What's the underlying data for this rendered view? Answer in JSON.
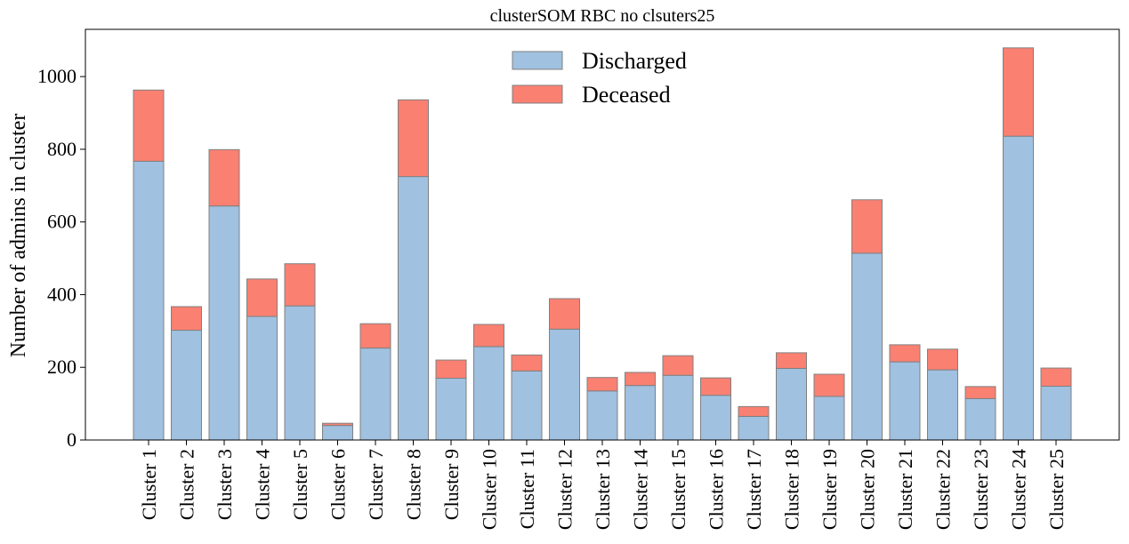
{
  "chart_data": {
    "type": "bar",
    "stacked": true,
    "title": "clusterSOM RBC no clsuters25",
    "xlabel": "",
    "ylabel": "Number of admins in cluster",
    "ylim": [
      0,
      1130
    ],
    "yticks": [
      0,
      200,
      400,
      600,
      800,
      1000
    ],
    "grid": false,
    "legend_position": "top-center",
    "categories": [
      "Cluster 1",
      "Cluster 2",
      "Cluster 3",
      "Cluster 4",
      "Cluster 5",
      "Cluster 6",
      "Cluster 7",
      "Cluster 8",
      "Cluster 9",
      "Cluster 10",
      "Cluster 11",
      "Cluster 12",
      "Cluster 13",
      "Cluster 14",
      "Cluster 15",
      "Cluster 16",
      "Cluster 17",
      "Cluster 18",
      "Cluster 19",
      "Cluster 20",
      "Cluster 21",
      "Cluster 22",
      "Cluster 23",
      "Cluster 24",
      "Cluster 25"
    ],
    "series": [
      {
        "name": "Discharged",
        "color": "#a0c1e0",
        "values": [
          767,
          302,
          644,
          340,
          369,
          40,
          253,
          725,
          170,
          257,
          190,
          305,
          135,
          150,
          178,
          123,
          65,
          197,
          120,
          514,
          215,
          193,
          114,
          836,
          148
        ]
      },
      {
        "name": "Deceased",
        "color": "#fa8072",
        "values": [
          196,
          65,
          155,
          103,
          116,
          6,
          67,
          211,
          50,
          61,
          44,
          84,
          37,
          36,
          54,
          48,
          27,
          43,
          61,
          147,
          47,
          57,
          33,
          243,
          50
        ]
      }
    ],
    "edge_color": "#808080"
  }
}
